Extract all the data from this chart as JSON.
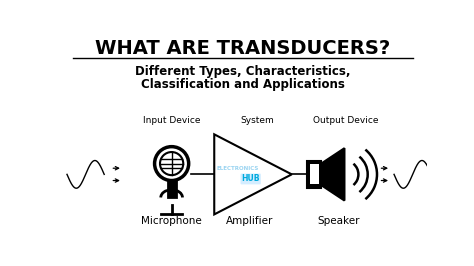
{
  "title": "WHAT ARE TRANSDUCERS?",
  "subtitle_line1": "Different Types, Characteristics,",
  "subtitle_line2": "Classification and Applications",
  "label_input_device": "Input Device",
  "label_system": "System",
  "label_output_device": "Output Device",
  "label_microphone": "Microphone",
  "label_amplifier": "Amplifier",
  "label_speaker": "Speaker",
  "watermark1": "ELECTRONICS",
  "watermark2": "HUB",
  "bg_color": "#ffffff",
  "text_color": "#000000",
  "title_fontsize": 14,
  "subtitle_fontsize": 8.5,
  "label_fontsize": 6.5,
  "icon_label_fontsize": 7.5,
  "watermark_color": "#88ccee",
  "watermark2_color": "#00aadd"
}
